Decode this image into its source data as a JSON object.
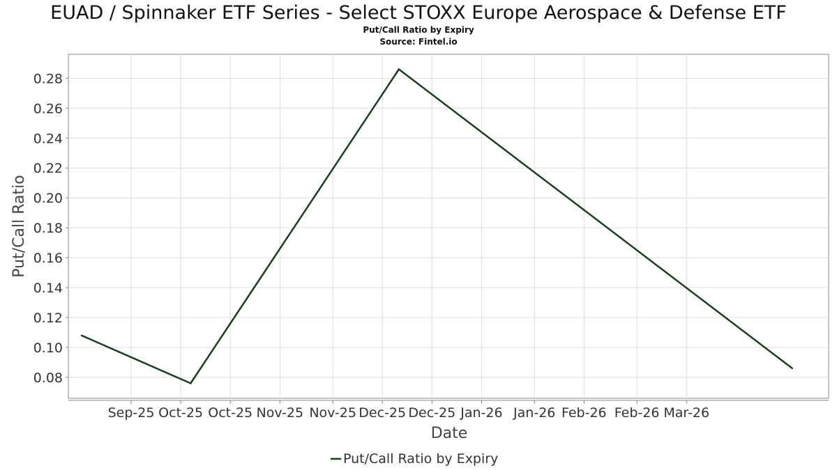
{
  "chart_data": {
    "type": "line",
    "title": "EUAD / Spinnaker ETF Series - Select STOXX Europe Aerospace & Defense ETF",
    "subtitle": "Put/Call Ratio by Expiry",
    "source": "Source: Fintel.io",
    "xlabel": "Date",
    "ylabel": "Put/Call Ratio",
    "x_tick_labels": [
      "Sep-25",
      "Oct-25",
      "Oct-25",
      "Nov-25",
      "Nov-25",
      "Dec-25",
      "Dec-25",
      "Jan-26",
      "Jan-26",
      "Feb-26",
      "Feb-26",
      "Mar-26"
    ],
    "y_tick_labels": [
      "0.08",
      "0.10",
      "0.12",
      "0.14",
      "0.16",
      "0.18",
      "0.20",
      "0.22",
      "0.24",
      "0.26",
      "0.28"
    ],
    "ylim": [
      0.066,
      0.296
    ],
    "xlim": [
      "2025-08-13",
      "2026-03-31"
    ],
    "x_ticks": [
      "2025-09-01",
      "2025-09-16",
      "2025-10-01",
      "2025-10-16",
      "2025-11-01",
      "2025-11-16",
      "2025-12-01",
      "2025-12-16",
      "2026-01-01",
      "2026-01-16",
      "2026-02-01",
      "2026-02-16"
    ],
    "y_ticks": [
      0.08,
      0.1,
      0.12,
      0.14,
      0.16,
      0.18,
      0.2,
      0.22,
      0.24,
      0.26,
      0.28
    ],
    "grid": true,
    "legend_position": "bottom-center",
    "series": [
      {
        "name": "Put/Call Ratio by Expiry",
        "color": "#1a3d1f",
        "x": [
          "2025-08-17",
          "2025-09-19",
          "2025-11-21",
          "2026-03-20"
        ],
        "y": [
          0.108,
          0.076,
          0.286,
          0.086
        ]
      }
    ]
  }
}
